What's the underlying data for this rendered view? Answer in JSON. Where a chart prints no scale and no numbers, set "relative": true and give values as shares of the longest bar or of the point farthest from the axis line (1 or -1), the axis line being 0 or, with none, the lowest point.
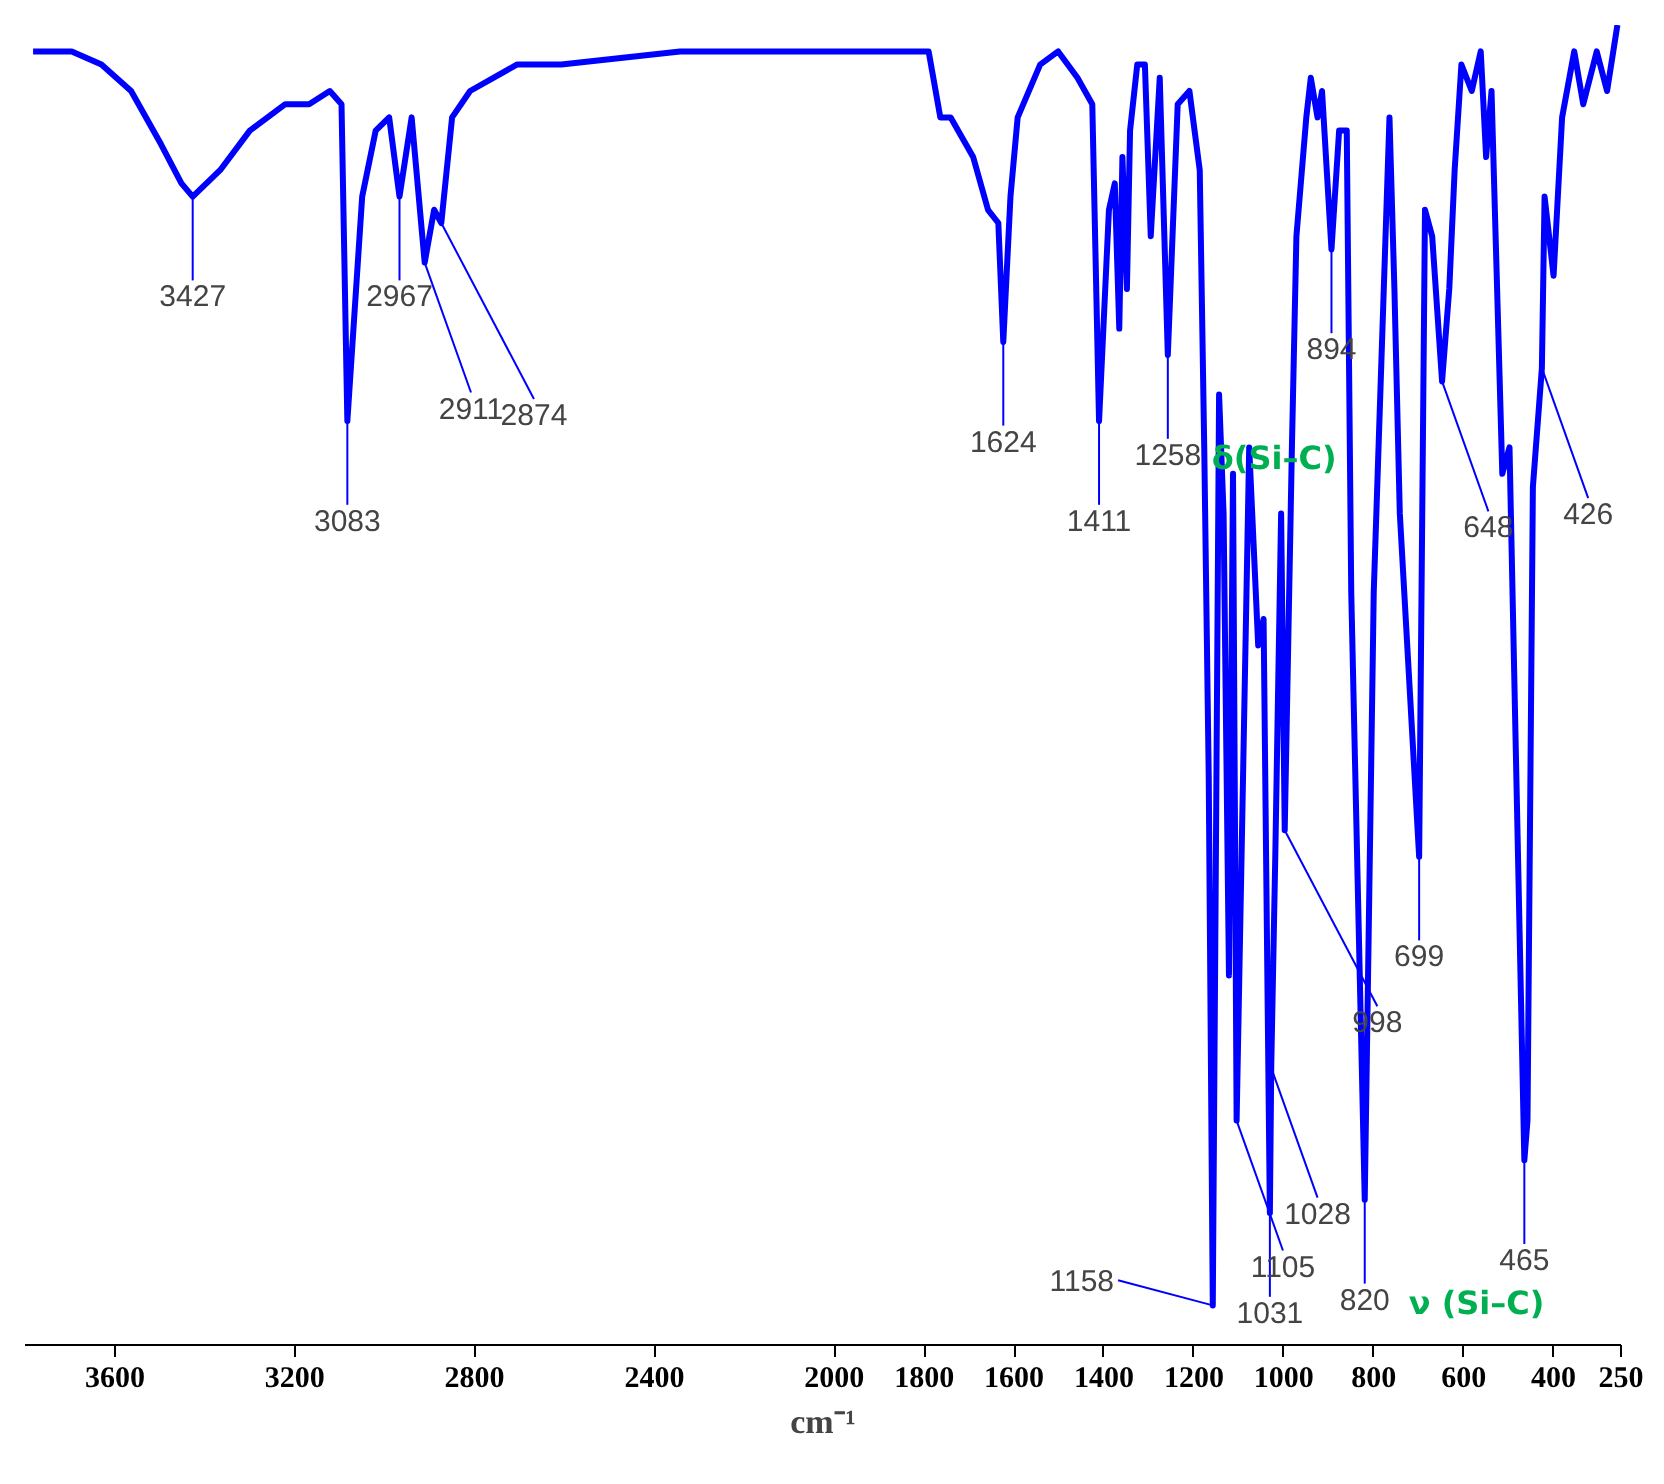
{
  "chart_data": {
    "type": "line",
    "relative": true,
    "xlabel": "cm⁻¹",
    "xlim": [
      3800,
      250
    ],
    "xticks": [
      3600,
      3200,
      2800,
      2400,
      2000,
      1800,
      1600,
      1400,
      1200,
      1000,
      800,
      600,
      400,
      250
    ],
    "grid": false,
    "marker": "none",
    "line_style": "solid",
    "tick_labels": "x",
    "series": [
      {
        "color": "#0000ff",
        "x": [
          3782,
          3696,
          3630,
          3564,
          3498,
          3452,
          3427,
          3366,
          3300,
          3221,
          3168,
          3122,
          3096,
          3083,
          3050,
          3020,
          2990,
          2967,
          2940,
          2911,
          2890,
          2874,
          2850,
          2810,
          2706,
          2607,
          2343,
          2013,
          1790,
          1764,
          1741,
          1691,
          1658,
          1635,
          1624,
          1608,
          1592,
          1542,
          1502,
          1459,
          1426,
          1411,
          1389,
          1376,
          1366,
          1359,
          1349,
          1342,
          1326,
          1309,
          1296,
          1276,
          1258,
          1236,
          1210,
          1187,
          1177,
          1167,
          1158,
          1144,
          1134,
          1122,
          1113,
          1105,
          1077,
          1057,
          1045,
          1031,
          1028,
          1019,
          1006,
          998,
          982,
          972,
          950,
          940,
          925,
          915,
          894,
          877,
          860,
          850,
          820,
          800,
          765,
          754,
          742,
          699,
          686,
          670,
          648,
          632,
          620,
          605,
          582,
          562,
          550,
          538,
          514,
          498,
          465,
          458,
          446,
          426,
          420,
          400,
          381,
          354,
          334,
          304,
          281,
          258
        ],
        "values": [
          0.98,
          0.98,
          0.97,
          0.95,
          0.91,
          0.88,
          0.87,
          0.89,
          0.92,
          0.94,
          0.94,
          0.95,
          0.94,
          0.7,
          0.87,
          0.92,
          0.93,
          0.87,
          0.93,
          0.82,
          0.86,
          0.85,
          0.93,
          0.95,
          0.97,
          0.97,
          0.98,
          0.98,
          0.98,
          0.93,
          0.93,
          0.9,
          0.86,
          0.85,
          0.76,
          0.87,
          0.93,
          0.97,
          0.98,
          0.96,
          0.94,
          0.7,
          0.86,
          0.88,
          0.77,
          0.9,
          0.8,
          0.92,
          0.97,
          0.97,
          0.84,
          0.96,
          0.75,
          0.94,
          0.95,
          0.89,
          0.68,
          0.43,
          0.03,
          0.72,
          0.63,
          0.28,
          0.66,
          0.17,
          0.68,
          0.53,
          0.55,
          0.1,
          0.21,
          0.37,
          0.63,
          0.39,
          0.68,
          0.84,
          0.93,
          0.96,
          0.93,
          0.95,
          0.83,
          0.92,
          0.92,
          0.57,
          0.11,
          0.57,
          0.93,
          0.8,
          0.63,
          0.37,
          0.86,
          0.84,
          0.73,
          0.8,
          0.89,
          0.97,
          0.95,
          0.98,
          0.9,
          0.95,
          0.66,
          0.68,
          0.14,
          0.17,
          0.65,
          0.74,
          0.87,
          0.81,
          0.93,
          0.98,
          0.94,
          0.98,
          0.95,
          1.0
        ]
      }
    ],
    "annotations": [
      {
        "text": "3427",
        "x": 3427,
        "y": 0.87
      },
      {
        "text": "3083",
        "x": 3083,
        "y": 0.7
      },
      {
        "text": "2967",
        "x": 2967,
        "y": 0.87
      },
      {
        "text": "2911",
        "x": 2911,
        "y": 0.82
      },
      {
        "text": "2874",
        "x": 2874,
        "y": 0.85
      },
      {
        "text": "1624",
        "x": 1624,
        "y": 0.76
      },
      {
        "text": "1411",
        "x": 1411,
        "y": 0.7
      },
      {
        "text": "1258",
        "x": 1258,
        "y": 0.75
      },
      {
        "text": "δ(Si–C)",
        "x": 1258,
        "y": 0.75
      },
      {
        "text": "1158",
        "x": 1158,
        "y": 0.03
      },
      {
        "text": "1105",
        "x": 1105,
        "y": 0.17
      },
      {
        "text": "1031",
        "x": 1031,
        "y": 0.1
      },
      {
        "text": "1028",
        "x": 1028,
        "y": 0.21
      },
      {
        "text": "998",
        "x": 998,
        "y": 0.39
      },
      {
        "text": "894",
        "x": 894,
        "y": 0.83
      },
      {
        "text": "820",
        "x": 820,
        "y": 0.11
      },
      {
        "text": "ν (Si–C)",
        "x": 820,
        "y": 0.11
      },
      {
        "text": "699",
        "x": 699,
        "y": 0.37
      },
      {
        "text": "648",
        "x": 648,
        "y": 0.73
      },
      {
        "text": "465",
        "x": 465,
        "y": 0.14
      },
      {
        "text": "426",
        "x": 426,
        "y": 0.74
      }
    ]
  }
}
